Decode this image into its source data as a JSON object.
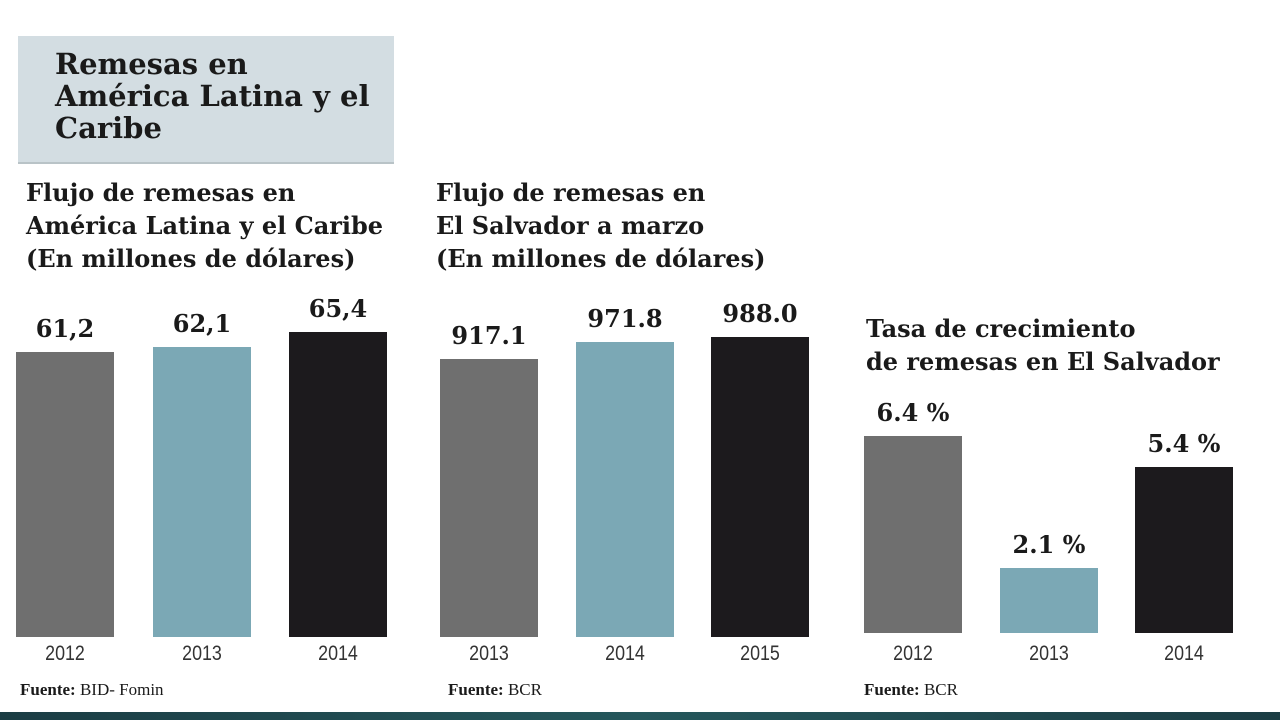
{
  "title": "Remesas en América Latina y el Caribe",
  "colors": {
    "gray": "#6f6f6f",
    "teal": "#7ba8b5",
    "black": "#1c1a1d",
    "title_box": "#d3dde2",
    "bottom_strip": "#1f4a50"
  },
  "chart_data": [
    {
      "type": "bar",
      "title": "Flujo de remesas en\nAmérica Latina y el Caribe\n(En millones de dólares)",
      "categories": [
        "2012",
        "2013",
        "2014"
      ],
      "values": [
        61.2,
        62.1,
        65.4
      ],
      "labels": [
        "61,2",
        "62,1",
        "65,4"
      ],
      "bar_colors": [
        "#6f6f6f",
        "#7ba8b5",
        "#1c1a1d"
      ],
      "source_label": "Fuente:",
      "source": " BID- Fomin"
    },
    {
      "type": "bar",
      "title": "Flujo de remesas en\nEl Salvador a marzo\n(En millones de dólares)",
      "categories": [
        "2013",
        "2014",
        "2015"
      ],
      "values": [
        917.1,
        971.8,
        988.0
      ],
      "labels": [
        "917.1",
        "971.8",
        "988.0"
      ],
      "bar_colors": [
        "#6f6f6f",
        "#7ba8b5",
        "#1c1a1d"
      ],
      "source_label": "Fuente:",
      "source": " BCR"
    },
    {
      "type": "bar",
      "title": "Tasa de crecimiento\nde remesas en El Salvador",
      "categories": [
        "2012",
        "2013",
        "2014"
      ],
      "values": [
        6.4,
        2.1,
        5.4
      ],
      "labels": [
        "6.4 %",
        "2.1 %",
        "5.4 %"
      ],
      "bar_colors": [
        "#6f6f6f",
        "#7ba8b5",
        "#1c1a1d"
      ],
      "source_label": "Fuente:",
      "source": " BCR"
    }
  ]
}
